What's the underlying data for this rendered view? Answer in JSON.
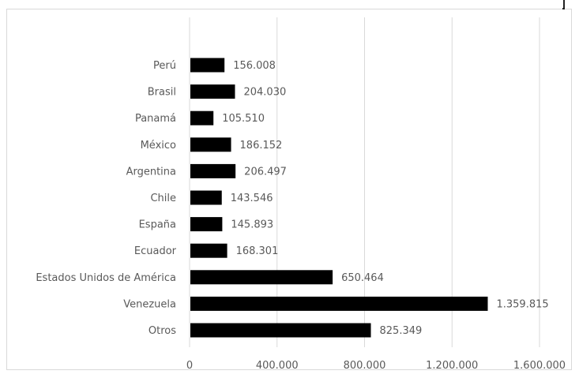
{
  "chart_data": {
    "type": "bar",
    "orientation": "horizontal",
    "title": "",
    "xlabel": "",
    "ylabel": "",
    "categories": [
      "Perú",
      "Brasil",
      "Panamá",
      "México",
      "Argentina",
      "Chile",
      "España",
      "Ecuador",
      "Estados Unidos de América",
      "Venezuela",
      "Otros"
    ],
    "values": [
      156008,
      204030,
      105510,
      186152,
      206497,
      143546,
      145893,
      168301,
      650464,
      1359815,
      825349
    ],
    "value_labels": [
      "156.008",
      "204.030",
      "105.510",
      "186.152",
      "206.497",
      "143.546",
      "145.893",
      "168.301",
      "650.464",
      "1.359.815",
      "825.349"
    ],
    "xlim": [
      0,
      1600000
    ],
    "xticks": [
      0,
      400000,
      800000,
      1200000,
      1600000
    ],
    "xtick_labels": [
      "0",
      "400.000",
      "800.000",
      "1.200.000",
      "1.600.000"
    ],
    "grid": true,
    "legend": "none",
    "bar_color": "#000000",
    "gridline_color": "#d9d9d9",
    "text_color": "#595959"
  }
}
